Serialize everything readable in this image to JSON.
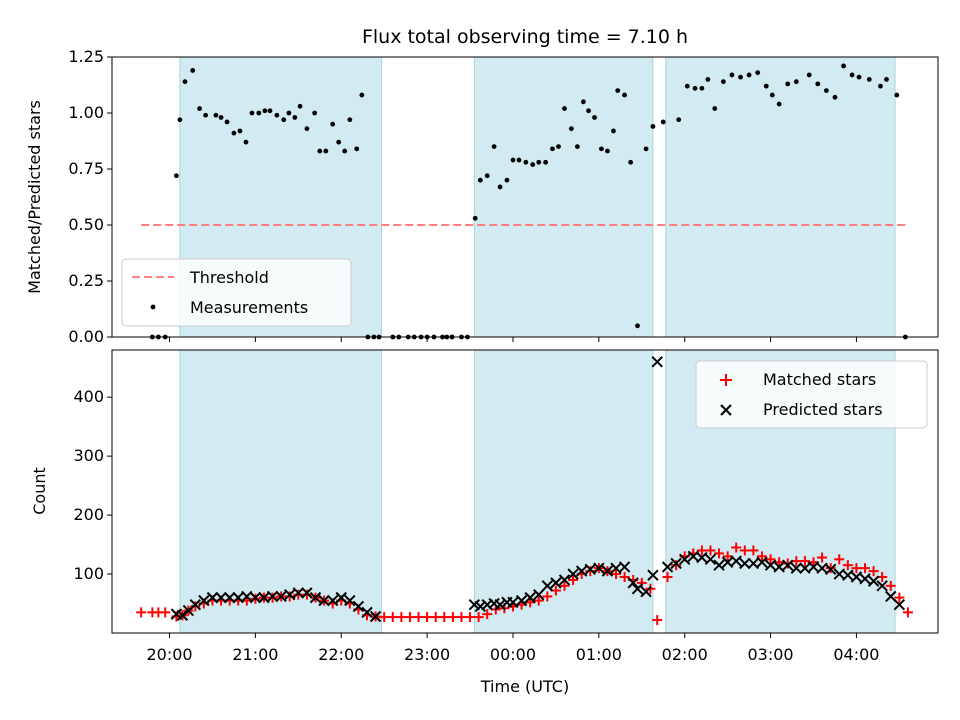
{
  "figure": {
    "title": "Flux total observing time = 7.10 h",
    "xlabel": "Time (UTC)"
  },
  "colors": {
    "shade": "#add8e6",
    "shade_edge": "#a9d3e0",
    "threshold": "#ff7f7f",
    "measurement": "#000000",
    "matched": "#ff0000",
    "predicted": "#000000"
  },
  "chart_data": [
    {
      "type": "scatter",
      "panel": "top",
      "title": "Flux total observing time = 7.10 h",
      "xlabel": "",
      "ylabel": "Matched/Predicted stars",
      "x_unit": "hours since 00:00 UTC (negative = previous evening)",
      "xlim": [
        -4.67,
        4.95
      ],
      "ylim": [
        0,
        1.25
      ],
      "yticks": [
        0.0,
        0.25,
        0.5,
        0.75,
        1.0,
        1.25
      ],
      "ytick_labels": [
        "0.00",
        "0.25",
        "0.50",
        "0.75",
        "1.00",
        "1.25"
      ],
      "grid": false,
      "legend": {
        "position": "lower-left",
        "entries": [
          "Threshold",
          "Measurements"
        ]
      },
      "shaded_intervals": [
        [
          -3.88,
          -1.53
        ],
        [
          -0.45,
          1.63
        ],
        [
          1.78,
          4.45
        ]
      ],
      "series": [
        {
          "name": "Threshold",
          "kind": "hline-dashed",
          "y": 0.5,
          "x": [
            -4.33,
            4.58
          ]
        },
        {
          "name": "Measurements",
          "kind": "dots",
          "x": [
            -4.2,
            -4.13,
            -4.05,
            -3.92,
            -3.88,
            -3.82,
            -3.73,
            -3.65,
            -3.58,
            -3.46,
            -3.4,
            -3.33,
            -3.25,
            -3.18,
            -3.11,
            -3.04,
            -2.96,
            -2.89,
            -2.83,
            -2.75,
            -2.67,
            -2.61,
            -2.54,
            -2.48,
            -2.4,
            -2.31,
            -2.25,
            -2.18,
            -2.1,
            -2.03,
            -1.96,
            -1.9,
            -1.82,
            -1.76,
            -1.69,
            -1.62,
            -1.56,
            -1.4,
            -1.33,
            -1.22,
            -1.15,
            -1.07,
            -1.0,
            -0.92,
            -0.82,
            -0.77,
            -0.71,
            -0.6,
            -0.53,
            -0.44,
            -0.38,
            -0.3,
            -0.22,
            -0.15,
            -0.07,
            0.0,
            0.07,
            0.15,
            0.23,
            0.3,
            0.38,
            0.46,
            0.53,
            0.6,
            0.68,
            0.75,
            0.82,
            0.88,
            0.95,
            1.03,
            1.1,
            1.17,
            1.22,
            1.3,
            1.37,
            1.45,
            1.55,
            1.63,
            1.75,
            1.93,
            2.03,
            2.12,
            2.2,
            2.27,
            2.35,
            2.45,
            2.55,
            2.65,
            2.75,
            2.85,
            2.95,
            3.02,
            3.1,
            3.2,
            3.3,
            3.45,
            3.55,
            3.65,
            3.75,
            3.85,
            3.95,
            4.03,
            4.15,
            4.28,
            4.35,
            4.47,
            4.57
          ],
          "y": [
            0.0,
            0.0,
            0.0,
            0.72,
            0.97,
            1.14,
            1.19,
            1.02,
            0.99,
            0.99,
            0.98,
            0.96,
            0.91,
            0.92,
            0.87,
            1.0,
            1.0,
            1.01,
            1.01,
            0.99,
            0.97,
            1.0,
            0.98,
            1.03,
            0.93,
            1.0,
            0.83,
            0.83,
            0.95,
            0.87,
            0.83,
            0.97,
            0.84,
            1.08,
            0.0,
            0.0,
            0.0,
            0.0,
            0.0,
            0.0,
            0.0,
            0.0,
            0.0,
            0.0,
            0.0,
            0.0,
            0.0,
            0.0,
            0.0,
            0.53,
            0.7,
            0.72,
            0.85,
            0.67,
            0.7,
            0.79,
            0.79,
            0.78,
            0.77,
            0.78,
            0.78,
            0.84,
            0.85,
            1.02,
            0.93,
            0.85,
            1.05,
            1.01,
            0.98,
            0.84,
            0.83,
            0.92,
            1.1,
            1.08,
            0.78,
            0.05,
            0.84,
            0.94,
            0.96,
            0.97,
            1.12,
            1.11,
            1.11,
            1.15,
            1.02,
            1.14,
            1.17,
            1.16,
            1.17,
            1.18,
            1.12,
            1.08,
            1.04,
            1.13,
            1.14,
            1.17,
            1.13,
            1.1,
            1.07,
            1.21,
            1.17,
            1.16,
            1.15,
            1.12,
            1.15,
            1.08,
            0.0
          ]
        }
      ]
    },
    {
      "type": "scatter",
      "panel": "bottom",
      "xlabel": "Time (UTC)",
      "ylabel": "Count",
      "x_unit": "hours since 00:00 UTC (negative = previous evening)",
      "xlim": [
        -4.67,
        4.95
      ],
      "xticks": [
        -4,
        -3,
        -2,
        -1,
        0,
        1,
        2,
        3,
        4
      ],
      "xtick_labels": [
        "20:00",
        "21:00",
        "22:00",
        "23:00",
        "00:00",
        "01:00",
        "02:00",
        "03:00",
        "04:00"
      ],
      "ylim": [
        0,
        480
      ],
      "yticks": [
        100,
        200,
        300,
        400
      ],
      "ytick_labels": [
        "100",
        "200",
        "300",
        "400"
      ],
      "grid": false,
      "legend": {
        "position": "top-right",
        "entries": [
          "Matched stars",
          "Predicted stars"
        ]
      },
      "shaded_intervals": [
        [
          -3.88,
          -1.53
        ],
        [
          -0.45,
          1.63
        ],
        [
          1.78,
          4.45
        ]
      ],
      "series": [
        {
          "name": "Matched stars",
          "marker": "plus",
          "x": [
            -4.33,
            -4.2,
            -4.13,
            -4.05,
            -3.92,
            -3.85,
            -3.78,
            -3.7,
            -3.6,
            -3.5,
            -3.4,
            -3.3,
            -3.2,
            -3.1,
            -3.0,
            -2.9,
            -2.8,
            -2.7,
            -2.6,
            -2.5,
            -2.4,
            -2.3,
            -2.2,
            -2.1,
            -2.0,
            -1.9,
            -1.8,
            -1.7,
            -1.6,
            -1.5,
            -1.4,
            -1.3,
            -1.2,
            -1.1,
            -1.0,
            -0.9,
            -0.8,
            -0.7,
            -0.6,
            -0.5,
            -0.4,
            -0.3,
            -0.2,
            -0.1,
            0.0,
            0.1,
            0.2,
            0.3,
            0.4,
            0.5,
            0.6,
            0.7,
            0.8,
            0.9,
            1.0,
            1.1,
            1.2,
            1.3,
            1.4,
            1.5,
            1.6,
            1.68,
            1.8,
            1.9,
            2.0,
            2.1,
            2.2,
            2.3,
            2.4,
            2.5,
            2.6,
            2.7,
            2.8,
            2.9,
            3.0,
            3.1,
            3.2,
            3.3,
            3.4,
            3.5,
            3.6,
            3.7,
            3.8,
            3.9,
            4.0,
            4.1,
            4.2,
            4.3,
            4.4,
            4.5,
            4.6
          ],
          "y": [
            35,
            35,
            35,
            35,
            28,
            30,
            38,
            45,
            50,
            55,
            55,
            55,
            55,
            55,
            58,
            60,
            60,
            62,
            62,
            65,
            65,
            60,
            55,
            50,
            55,
            50,
            40,
            30,
            28,
            27,
            27,
            27,
            27,
            27,
            27,
            27,
            27,
            27,
            27,
            27,
            27,
            32,
            40,
            42,
            45,
            48,
            52,
            55,
            62,
            72,
            80,
            90,
            100,
            105,
            110,
            105,
            100,
            95,
            90,
            85,
            75,
            22,
            95,
            115,
            130,
            135,
            140,
            140,
            135,
            130,
            145,
            140,
            140,
            130,
            125,
            120,
            118,
            122,
            122,
            120,
            128,
            110,
            125,
            115,
            110,
            110,
            105,
            95,
            80,
            60,
            35
          ]
        },
        {
          "name": "Predicted stars",
          "marker": "x",
          "x": [
            -3.92,
            -3.85,
            -3.78,
            -3.7,
            -3.6,
            -3.5,
            -3.4,
            -3.3,
            -3.2,
            -3.1,
            -3.0,
            -2.9,
            -2.8,
            -2.7,
            -2.6,
            -2.5,
            -2.4,
            -2.3,
            -2.2,
            -2.1,
            -2.0,
            -1.9,
            -1.8,
            -1.7,
            -1.6,
            -0.45,
            -0.38,
            -0.3,
            -0.22,
            -0.15,
            -0.07,
            0.0,
            0.1,
            0.2,
            0.3,
            0.4,
            0.5,
            0.6,
            0.7,
            0.8,
            0.9,
            1.0,
            1.1,
            1.2,
            1.3,
            1.4,
            1.45,
            1.55,
            1.63,
            1.68,
            1.8,
            1.9,
            2.0,
            2.1,
            2.2,
            2.3,
            2.4,
            2.5,
            2.6,
            2.7,
            2.8,
            2.9,
            3.0,
            3.1,
            3.2,
            3.3,
            3.4,
            3.5,
            3.6,
            3.7,
            3.8,
            3.9,
            4.0,
            4.1,
            4.2,
            4.3,
            4.4,
            4.5
          ],
          "y": [
            32,
            30,
            38,
            48,
            55,
            60,
            60,
            60,
            60,
            62,
            60,
            60,
            62,
            62,
            65,
            68,
            68,
            60,
            55,
            55,
            60,
            55,
            45,
            35,
            28,
            48,
            45,
            48,
            50,
            48,
            52,
            52,
            55,
            60,
            65,
            80,
            85,
            90,
            100,
            105,
            108,
            110,
            105,
            110,
            112,
            85,
            75,
            70,
            98,
            460,
            112,
            118,
            125,
            130,
            128,
            125,
            115,
            120,
            122,
            118,
            118,
            120,
            115,
            112,
            115,
            110,
            110,
            112,
            110,
            108,
            100,
            98,
            95,
            92,
            88,
            80,
            62,
            48
          ]
        }
      ]
    }
  ]
}
